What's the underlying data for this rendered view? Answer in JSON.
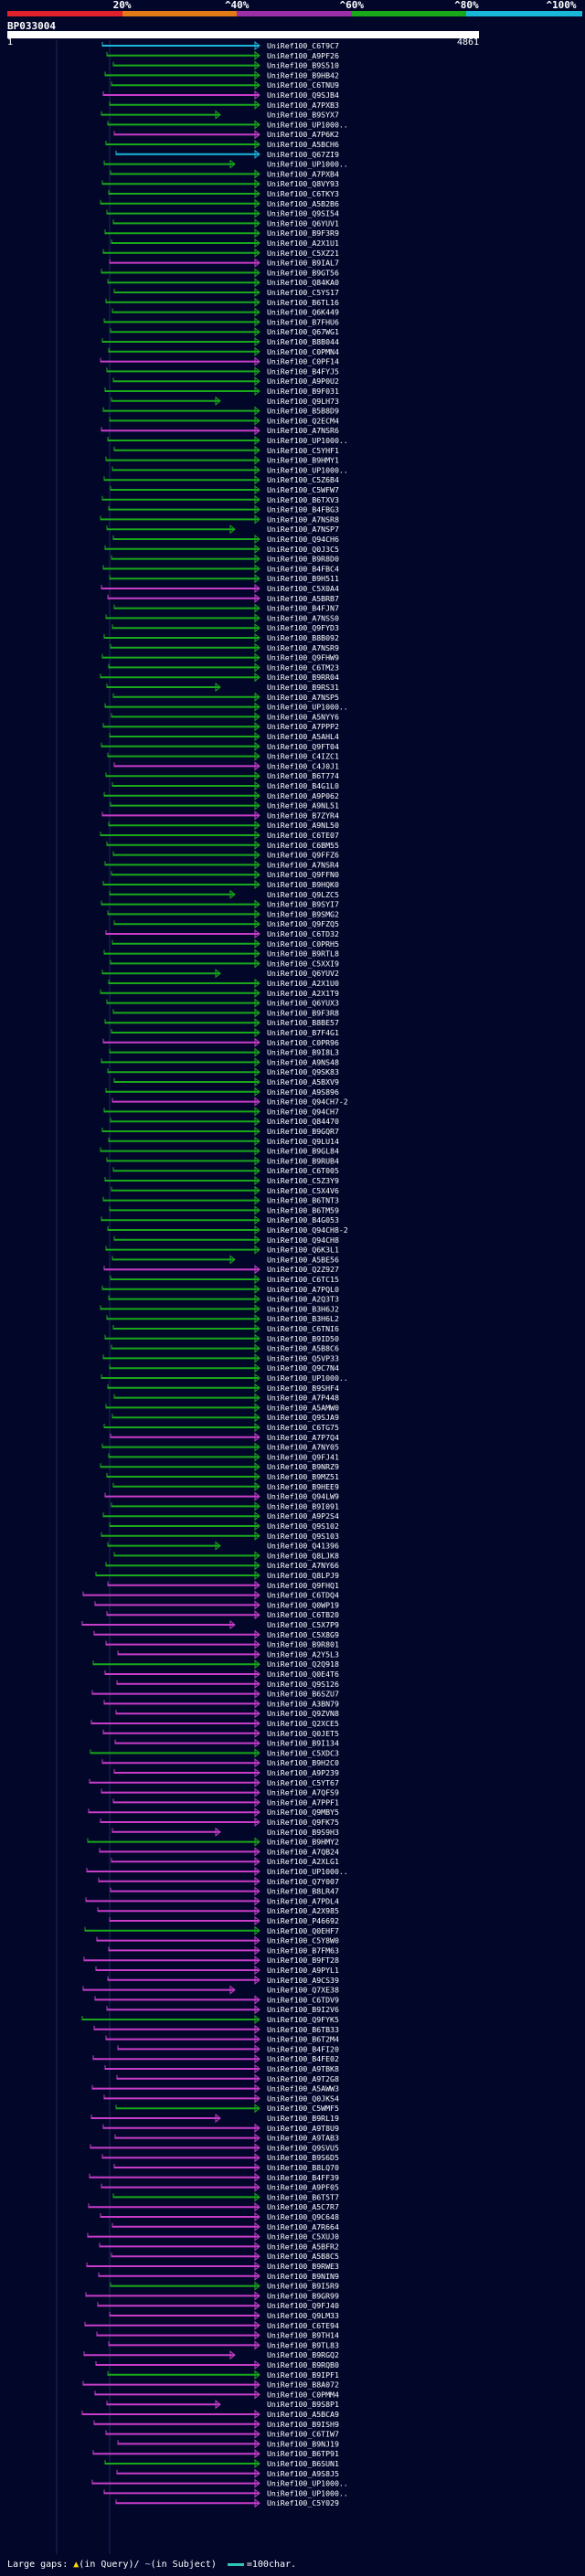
{
  "legend": {
    "labels": [
      "20%",
      "^40%",
      "^60%",
      "^80%",
      "^100%"
    ],
    "colors": [
      "#e0202b",
      "#e27a18",
      "#9b2fa8",
      "#19a819",
      "#19b7d8"
    ]
  },
  "query": {
    "name": "BP033004",
    "start": "1",
    "end": "4861"
  },
  "hits": [
    "UniRef100_C6T9C7",
    "UniRef100_A9PF26",
    "UniRef100_B9S510",
    "UniRef100_B9HB42",
    "UniRef100_C6TNU9",
    "UniRef100_Q9SJB4",
    "UniRef100_A7PXB3",
    "UniRef100_B9SYX7",
    "UniRef100_UP1000..",
    "UniRef100_A7P6K2",
    "UniRef100_A5BCH6",
    "UniRef100_Q67ZI9",
    "UniRef100_UP1000..",
    "UniRef100_A7PXB4",
    "UniRef100_Q8VY93",
    "UniRef100_C6TKY3",
    "UniRef100_A5B2B6",
    "UniRef100_Q9SI54",
    "UniRef100_Q6YUV1",
    "UniRef100_B9F3R9",
    "UniRef100_A2X1U1",
    "UniRef100_C5XZ21",
    "UniRef100_B9IAL7",
    "UniRef100_B9GT56",
    "UniRef100_Q84KA0",
    "UniRef100_C5YS17",
    "UniRef100_B6TL16",
    "UniRef100_Q6K449",
    "UniRef100_B7FHU6",
    "UniRef100_Q67WG1",
    "UniRef100_B8B044",
    "UniRef100_C0PMN4",
    "UniRef100_C0PF14",
    "UniRef100_B4FYJ5",
    "UniRef100_A9P0U2",
    "UniRef100_B9F031",
    "UniRef100_Q9LH73",
    "UniRef100_B5B8D9",
    "UniRef100_Q2ECM4",
    "UniRef100_A7NSR6",
    "UniRef100_UP1000..",
    "UniRef100_C5YHF1",
    "UniRef100_B9HMY1",
    "UniRef100_UP1000..",
    "UniRef100_C5Z6B4",
    "UniRef100_C5WFW7",
    "UniRef100_B6TXV3",
    "UniRef100_B4FBG3",
    "UniRef100_A7NSR8",
    "UniRef100_A7NSP7",
    "UniRef100_Q94CH6",
    "UniRef100_Q0J3C5",
    "UniRef100_B9R8D0",
    "UniRef100_B4FBC4",
    "UniRef100_B9H511",
    "UniRef100_C5X0A4",
    "UniRef100_A5BRB7",
    "UniRef100_B4FJN7",
    "UniRef100_A7NSS0",
    "UniRef100_Q9FYD3",
    "UniRef100_B8B092",
    "UniRef100_A7NSR9",
    "UniRef100_Q9FHW9",
    "UniRef100_C6TM23",
    "UniRef100_B9RR04",
    "UniRef100_B9RS31",
    "UniRef100_A7NSP5",
    "UniRef100_UP1000..",
    "UniRef100_A5NYY6",
    "UniRef100_A7PPP2",
    "UniRef100_A5AHL4",
    "UniRef100_Q9FT04",
    "UniRef100_C4IZC1",
    "UniRef100_C4J0J1",
    "UniRef100_B6T774",
    "UniRef100_B4G1L0",
    "UniRef100_A9P062",
    "UniRef100_A9NL51",
    "UniRef100_B7ZYR4",
    "UniRef100_A9NL50",
    "UniRef100_C6TE07",
    "UniRef100_C6BM55",
    "UniRef100_Q9FFZ6",
    "UniRef100_A7NSR4",
    "UniRef100_Q9FFN0",
    "UniRef100_B9HQK0",
    "UniRef100_Q9LZC5",
    "UniRef100_B9SYI7",
    "UniRef100_B9SMG2",
    "UniRef100_Q9FZQ5",
    "UniRef100_C6TD32",
    "UniRef100_C0PRH5",
    "UniRef100_B9RTL8",
    "UniRef100_C5XXI9",
    "UniRef100_Q6YUV2",
    "UniRef100_A2X1U0",
    "UniRef100_A2X1T9",
    "UniRef100_Q6YUX3",
    "UniRef100_B9F3R8",
    "UniRef100_B8BE57",
    "UniRef100_B7F4G1",
    "UniRef100_C0PR96",
    "UniRef100_B9I8L3",
    "UniRef100_A9NS48",
    "UniRef100_Q9SK83",
    "UniRef100_A5BXV9",
    "UniRef100_A9S896",
    "UniRef100_Q94CH7-2",
    "UniRef100_Q94CH7",
    "UniRef100_Q84470",
    "UniRef100_B9GQR7",
    "UniRef100_Q9LU14",
    "UniRef100_B9GL84",
    "UniRef100_B9RUB4",
    "UniRef100_C6T005",
    "UniRef100_C5Z3Y9",
    "UniRef100_C5X4V6",
    "UniRef100_B6TNT3",
    "UniRef100_B6TM59",
    "UniRef100_B4G053",
    "UniRef100_Q94CH8-2",
    "UniRef100_Q94CH8",
    "UniRef100_Q6K3L1",
    "UniRef100_A5BE56",
    "UniRef100_Q2Z927",
    "UniRef100_C6TC15",
    "UniRef100_A7PQL0",
    "UniRef100_A2Q3T3",
    "UniRef100_B3H6J2",
    "UniRef100_B3H6L2",
    "UniRef100_C6TNI6",
    "UniRef100_B9ID50",
    "UniRef100_A5B8C6",
    "UniRef100_Q5VP33",
    "UniRef100_Q9C7N4",
    "UniRef100_UP1000..",
    "UniRef100_B9SHF4",
    "UniRef100_A7P448",
    "UniRef100_A5AMW0",
    "UniRef100_Q9SJA9",
    "UniRef100_C6TG75",
    "UniRef100_A7P7Q4",
    "UniRef100_A7NY05",
    "UniRef100_Q9FJ41",
    "UniRef100_B9NRZ9",
    "UniRef100_B9MZ51",
    "UniRef100_B9HEE9",
    "UniRef100_Q94LW9",
    "UniRef100_B9I091",
    "UniRef100_A9P2S4",
    "UniRef100_Q9S102",
    "UniRef100_Q9S103",
    "UniRef100_Q41396",
    "UniRef100_Q8LJK8",
    "UniRef100_A7NY66",
    "UniRef100_Q8LPJ9",
    "UniRef100_Q9FHQ1",
    "UniRef100_C6TDQ4",
    "UniRef100_Q0WP19",
    "UniRef100_C6TB20",
    "UniRef100_C5X7P9",
    "UniRef100_C5X8G9",
    "UniRef100_B9R801",
    "UniRef100_A2Y5L3",
    "UniRef100_Q2Q918",
    "UniRef100_Q0E4T6",
    "UniRef100_Q9S126",
    "UniRef100_B6SZU7",
    "UniRef100_A3BN79",
    "UniRef100_Q9ZVN8",
    "UniRef100_Q2XCE5",
    "UniRef100_Q0JET5",
    "UniRef100_B9I134",
    "UniRef100_C5XDC3",
    "UniRef100_B9H2C0",
    "UniRef100_A9P239",
    "UniRef100_C5YT67",
    "UniRef100_A7QFS9",
    "UniRef100_A7PPF1",
    "UniRef100_Q9MBY5",
    "UniRef100_Q9FK75",
    "UniRef100_B9S9H3",
    "UniRef100_B9HMY2",
    "UniRef100_A7QB24",
    "UniRef100_A2XLG1",
    "UniRef100_UP1000..",
    "UniRef100_Q7Y007",
    "UniRef100_B8LR47",
    "UniRef100_A7PDL4",
    "UniRef100_A2X985",
    "UniRef100_P46692",
    "UniRef100_Q0EHF7",
    "UniRef100_C5Y8W0",
    "UniRef100_B7FM63",
    "UniRef100_B9FT28",
    "UniRef100_A9PYL1",
    "UniRef100_A9CS39",
    "UniRef100_Q7XE38",
    "UniRef100_C6TDV9",
    "UniRef100_B9I2V6",
    "UniRef100_Q9FYK5",
    "UniRef100_B6TB33",
    "UniRef100_B6T2M4",
    "UniRef100_B4FI20",
    "UniRef100_B4FE02",
    "UniRef100_A9TBK8",
    "UniRef100_A9T2G8",
    "UniRef100_A5AWW3",
    "UniRef100_Q0JKS4",
    "UniRef100_C5WMF5",
    "UniRef100_B9RL19",
    "UniRef100_A9T8U9",
    "UniRef100_A9TAB3",
    "UniRef100_Q9SVU5",
    "UniRef100_B9S6D5",
    "UniRef100_B8LQ70",
    "UniRef100_B4FF39",
    "UniRef100_A9PF05",
    "UniRef100_B6T5T7",
    "UniRef100_A5C7R7",
    "UniRef100_Q9C648",
    "UniRef100_A7R664",
    "UniRef100_C5XUJ0",
    "UniRef100_A5BFR2",
    "UniRef100_A5B8C5",
    "UniRef100_B9RWE3",
    "UniRef100_B9NIN9",
    "UniRef100_B9I5R9",
    "UniRef100_B9GR99",
    "UniRef100_Q9FJ40",
    "UniRef100_Q9LM33",
    "UniRef100_C6TE94",
    "UniRef100_B9TH14",
    "UniRef100_B9TL83",
    "UniRef100_B9RGQ2",
    "UniRef100_B9RQB0",
    "UniRef100_B9IPF1",
    "UniRef100_B8A072",
    "UniRef100_C0PMM4",
    "UniRef100_B9S8P1",
    "UniRef100_A5BCA9",
    "UniRef100_B9ISH9",
    "UniRef100_C6TIW7",
    "UniRef100_B9NJ19",
    "UniRef100_B6TP91",
    "UniRef100_B6SUN1",
    "UniRef100_A9S8J5",
    "UniRef100_UP1000..",
    "UniRef100_UP1000..",
    "UniRef100_C5Y029"
  ],
  "footer": {
    "large_gaps": "Large gaps:",
    "in_query": "(in Query)",
    "in_subject": "(in Subject)",
    "scale": "=100char."
  }
}
